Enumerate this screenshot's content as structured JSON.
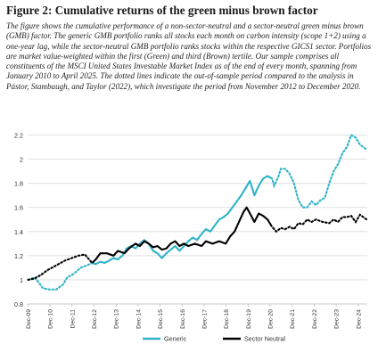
{
  "figure": {
    "title": "Figure 2: Cumulative returns of the green minus brown factor",
    "caption": "The figure shows the cumulative performance of a non-sector-neutral and a sector-neutral green minus brown (GMB) factor. The generic GMB portfolio ranks all stocks each month on carbon intensity (scope 1+2) using a one-year lag, while the sector-neutral GMB portfolio ranks stocks within the respective GICS1 sector. Portfolios are market value-weighted within the first (Green) and third (Brown) tertile. Our sample comprises all constituents of the MSCI United States Investable Market Index as of the end of every month, spanning from January 2010 to April 2025. The dotted lines indicate the out-of-sample period compared to the analysis in Pástor, Stambaugh, and Taylor (2022), which investigate the period from November 2012 to December 2020."
  },
  "chart_data": {
    "type": "line",
    "title": "",
    "xlabel": "",
    "ylabel": "",
    "x_tick_labels": [
      "Dec-09",
      "Dec-10",
      "Dec-11",
      "Dec-12",
      "Dec-13",
      "Dec-14",
      "Dec-15",
      "Dec-16",
      "Dec-17",
      "Dec-18",
      "Dec-19",
      "Dec-20",
      "Dec-21",
      "Dec-22",
      "Dec-23",
      "Dec-24"
    ],
    "x_range": [
      2009.9,
      2025.33
    ],
    "y_ticks": [
      "0.8",
      "1",
      "1.2",
      "1.4",
      "1.6",
      "1.8",
      "2",
      "2.2"
    ],
    "ylim": [
      0.8,
      2.3
    ],
    "grid": "horizontal",
    "legend_position": "bottom-center",
    "out_of_sample_style": "dotted",
    "in_sample_period": [
      "Nov-12",
      "Dec-20"
    ],
    "series": [
      {
        "name": "Generic",
        "color": "#2eb3c8",
        "values": [
          [
            2009.92,
            1.0
          ],
          [
            2010.2,
            1.02
          ],
          [
            2010.4,
            0.98
          ],
          [
            2010.6,
            0.93
          ],
          [
            2010.9,
            0.92
          ],
          [
            2011.2,
            0.92
          ],
          [
            2011.5,
            0.96
          ],
          [
            2011.7,
            1.02
          ],
          [
            2012.0,
            1.05
          ],
          [
            2012.3,
            1.1
          ],
          [
            2012.6,
            1.12
          ],
          [
            2012.83,
            1.14
          ],
          [
            2013.0,
            1.13
          ],
          [
            2013.2,
            1.15
          ],
          [
            2013.4,
            1.14
          ],
          [
            2013.6,
            1.16
          ],
          [
            2013.8,
            1.18
          ],
          [
            2014.0,
            1.17
          ],
          [
            2014.2,
            1.2
          ],
          [
            2014.4,
            1.26
          ],
          [
            2014.6,
            1.28
          ],
          [
            2014.8,
            1.26
          ],
          [
            2015.0,
            1.3
          ],
          [
            2015.2,
            1.33
          ],
          [
            2015.4,
            1.3
          ],
          [
            2015.6,
            1.24
          ],
          [
            2015.8,
            1.22
          ],
          [
            2016.0,
            1.18
          ],
          [
            2016.2,
            1.22
          ],
          [
            2016.4,
            1.25
          ],
          [
            2016.6,
            1.28
          ],
          [
            2016.8,
            1.24
          ],
          [
            2017.0,
            1.28
          ],
          [
            2017.2,
            1.32
          ],
          [
            2017.4,
            1.35
          ],
          [
            2017.6,
            1.33
          ],
          [
            2017.8,
            1.38
          ],
          [
            2018.0,
            1.42
          ],
          [
            2018.2,
            1.4
          ],
          [
            2018.4,
            1.45
          ],
          [
            2018.6,
            1.5
          ],
          [
            2018.8,
            1.52
          ],
          [
            2019.0,
            1.55
          ],
          [
            2019.2,
            1.6
          ],
          [
            2019.4,
            1.65
          ],
          [
            2019.6,
            1.7
          ],
          [
            2019.8,
            1.76
          ],
          [
            2020.0,
            1.82
          ],
          [
            2020.2,
            1.7
          ],
          [
            2020.4,
            1.78
          ],
          [
            2020.6,
            1.84
          ],
          [
            2020.8,
            1.86
          ],
          [
            2021.0,
            1.84
          ],
          [
            2021.1,
            1.78
          ],
          [
            2021.2,
            1.82
          ],
          [
            2021.3,
            1.86
          ],
          [
            2021.4,
            1.92
          ],
          [
            2021.6,
            1.92
          ],
          [
            2021.8,
            1.88
          ],
          [
            2022.0,
            1.8
          ],
          [
            2022.2,
            1.66
          ],
          [
            2022.4,
            1.6
          ],
          [
            2022.6,
            1.6
          ],
          [
            2022.8,
            1.65
          ],
          [
            2023.0,
            1.62
          ],
          [
            2023.2,
            1.66
          ],
          [
            2023.4,
            1.68
          ],
          [
            2023.6,
            1.8
          ],
          [
            2023.8,
            1.9
          ],
          [
            2024.0,
            1.96
          ],
          [
            2024.2,
            2.05
          ],
          [
            2024.4,
            2.1
          ],
          [
            2024.6,
            2.2
          ],
          [
            2024.8,
            2.18
          ],
          [
            2025.0,
            2.12
          ],
          [
            2025.3,
            2.08
          ]
        ]
      },
      {
        "name": "Sector Neutral",
        "color": "#000000",
        "values": [
          [
            2009.92,
            1.0
          ],
          [
            2010.2,
            1.01
          ],
          [
            2010.5,
            1.04
          ],
          [
            2010.8,
            1.08
          ],
          [
            2011.0,
            1.1
          ],
          [
            2011.3,
            1.13
          ],
          [
            2011.6,
            1.16
          ],
          [
            2011.9,
            1.18
          ],
          [
            2012.2,
            1.2
          ],
          [
            2012.5,
            1.21
          ],
          [
            2012.83,
            1.14
          ],
          [
            2013.0,
            1.17
          ],
          [
            2013.2,
            1.22
          ],
          [
            2013.5,
            1.22
          ],
          [
            2013.8,
            1.2
          ],
          [
            2014.0,
            1.24
          ],
          [
            2014.3,
            1.22
          ],
          [
            2014.5,
            1.26
          ],
          [
            2014.8,
            1.3
          ],
          [
            2015.0,
            1.28
          ],
          [
            2015.2,
            1.32
          ],
          [
            2015.4,
            1.3
          ],
          [
            2015.6,
            1.27
          ],
          [
            2015.8,
            1.28
          ],
          [
            2016.0,
            1.25
          ],
          [
            2016.2,
            1.26
          ],
          [
            2016.4,
            1.3
          ],
          [
            2016.6,
            1.32
          ],
          [
            2016.8,
            1.28
          ],
          [
            2017.0,
            1.3
          ],
          [
            2017.2,
            1.28
          ],
          [
            2017.5,
            1.3
          ],
          [
            2017.8,
            1.28
          ],
          [
            2018.0,
            1.32
          ],
          [
            2018.3,
            1.3
          ],
          [
            2018.6,
            1.32
          ],
          [
            2018.9,
            1.3
          ],
          [
            2019.1,
            1.36
          ],
          [
            2019.3,
            1.4
          ],
          [
            2019.5,
            1.48
          ],
          [
            2019.7,
            1.56
          ],
          [
            2019.85,
            1.6
          ],
          [
            2020.0,
            1.55
          ],
          [
            2020.2,
            1.48
          ],
          [
            2020.4,
            1.55
          ],
          [
            2020.6,
            1.53
          ],
          [
            2020.8,
            1.5
          ],
          [
            2021.0,
            1.44
          ],
          [
            2021.2,
            1.4
          ],
          [
            2021.4,
            1.43
          ],
          [
            2021.6,
            1.42
          ],
          [
            2021.8,
            1.44
          ],
          [
            2022.0,
            1.42
          ],
          [
            2022.2,
            1.47
          ],
          [
            2022.4,
            1.46
          ],
          [
            2022.6,
            1.5
          ],
          [
            2022.8,
            1.48
          ],
          [
            2023.0,
            1.5
          ],
          [
            2023.3,
            1.48
          ],
          [
            2023.6,
            1.47
          ],
          [
            2023.8,
            1.5
          ],
          [
            2024.0,
            1.48
          ],
          [
            2024.2,
            1.52
          ],
          [
            2024.4,
            1.52
          ],
          [
            2024.6,
            1.53
          ],
          [
            2024.8,
            1.48
          ],
          [
            2025.0,
            1.54
          ],
          [
            2025.3,
            1.5
          ]
        ]
      }
    ]
  }
}
